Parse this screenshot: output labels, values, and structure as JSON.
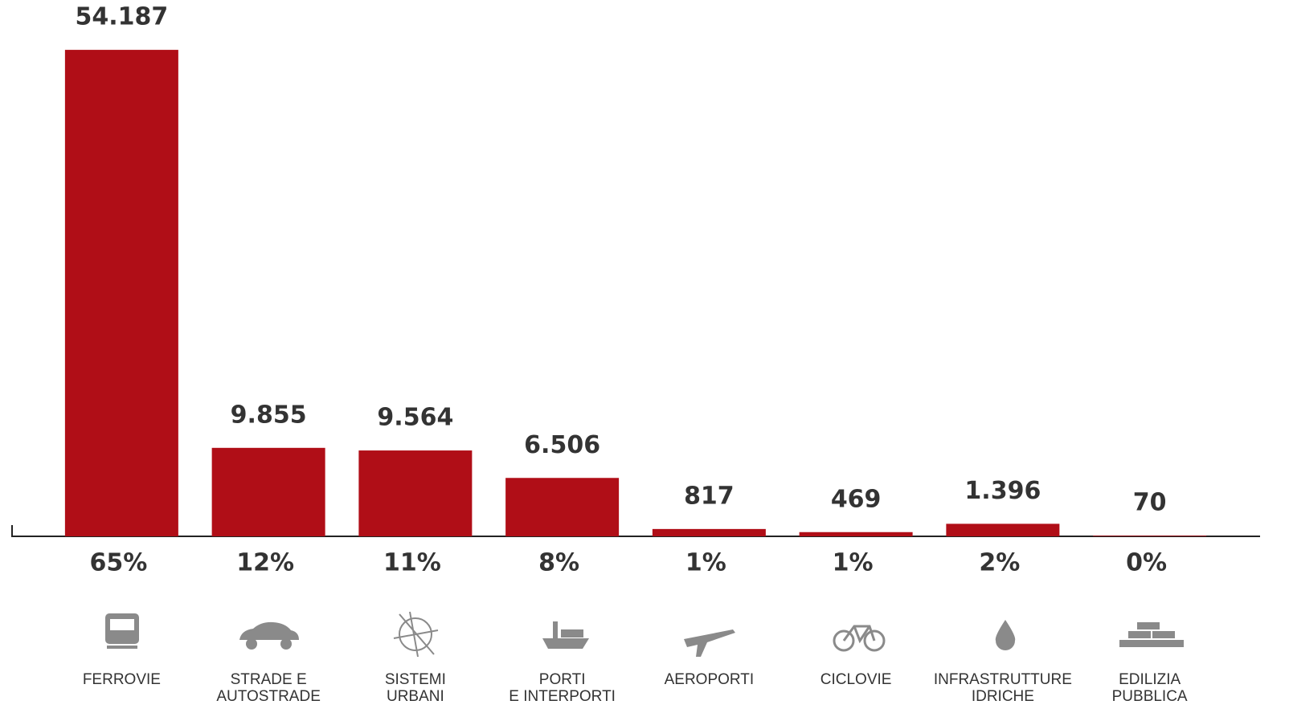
{
  "chart_data": {
    "type": "bar",
    "categories": [
      "FERROVIE",
      "STRADE E\nAUTOSTRADE",
      "SISTEMI\nURBANI",
      "PORTI\nE INTERPORTI",
      "AEROPORTI",
      "CICLOVIE",
      "INFRASTRUTTURE\nIDRICHE",
      "EDILIZIA\nPUBBLICA"
    ],
    "values": [
      54187,
      9855,
      9564,
      6506,
      817,
      469,
      1396,
      70
    ],
    "value_labels": [
      "54.187",
      "9.855",
      "9.564",
      "6.506",
      "817",
      "469",
      "1.396",
      "70"
    ],
    "share_labels": [
      "65%",
      "12%",
      "11%",
      "8%",
      "1%",
      "1%",
      "2%",
      "0%"
    ],
    "color": "#b00e17",
    "ylim": [
      0,
      55000
    ]
  }
}
